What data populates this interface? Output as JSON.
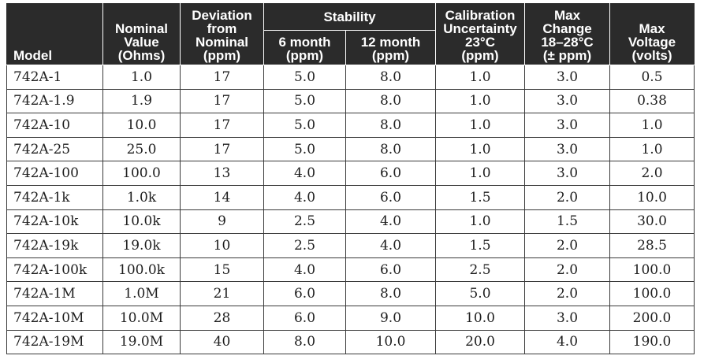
{
  "table": {
    "headers": {
      "model": "Model",
      "nominal": [
        "Nominal",
        "Value",
        "(Ohms)"
      ],
      "deviation": [
        "Deviation",
        "from",
        "Nominal",
        "(ppm)"
      ],
      "stability": "Stability",
      "six_month": [
        "6 month",
        "(ppm)"
      ],
      "twelve_month": [
        "12 month",
        "(ppm)"
      ],
      "calibration": [
        "Calibration",
        "Uncertainty",
        "23°C",
        "(ppm)"
      ],
      "max_change": [
        "Max",
        "Change",
        "18–28°C",
        "(± ppm)"
      ],
      "max_voltage": [
        "Max",
        "Voltage",
        "(volts)"
      ]
    },
    "rows": [
      {
        "model": "742A-1",
        "nominal": "1.0",
        "deviation": "17",
        "six_month": "5.0",
        "twelve_month": "8.0",
        "calibration": "1.0",
        "max_change": "3.0",
        "max_voltage": "0.5"
      },
      {
        "model": "742A-1.9",
        "nominal": "1.9",
        "deviation": "17",
        "six_month": "5.0",
        "twelve_month": "8.0",
        "calibration": "1.0",
        "max_change": "3.0",
        "max_voltage": "0.38"
      },
      {
        "model": "742A-10",
        "nominal": "10.0",
        "deviation": "17",
        "six_month": "5.0",
        "twelve_month": "8.0",
        "calibration": "1.0",
        "max_change": "3.0",
        "max_voltage": "1.0"
      },
      {
        "model": "742A-25",
        "nominal": "25.0",
        "deviation": "17",
        "six_month": "5.0",
        "twelve_month": "8.0",
        "calibration": "1.0",
        "max_change": "3.0",
        "max_voltage": "1.0"
      },
      {
        "model": "742A-100",
        "nominal": "100.0",
        "deviation": "13",
        "six_month": "4.0",
        "twelve_month": "6.0",
        "calibration": "1.0",
        "max_change": "3.0",
        "max_voltage": "2.0"
      },
      {
        "model": "742A-1k",
        "nominal": "1.0k",
        "deviation": "14",
        "six_month": "4.0",
        "twelve_month": "6.0",
        "calibration": "1.5",
        "max_change": "2.0",
        "max_voltage": "10.0"
      },
      {
        "model": "742A-10k",
        "nominal": "10.0k",
        "deviation": "9",
        "six_month": "2.5",
        "twelve_month": "4.0",
        "calibration": "1.0",
        "max_change": "1.5",
        "max_voltage": "30.0"
      },
      {
        "model": "742A-19k",
        "nominal": "19.0k",
        "deviation": "10",
        "six_month": "2.5",
        "twelve_month": "4.0",
        "calibration": "1.5",
        "max_change": "2.0",
        "max_voltage": "28.5"
      },
      {
        "model": "742A-100k",
        "nominal": "100.0k",
        "deviation": "15",
        "six_month": "4.0",
        "twelve_month": "6.0",
        "calibration": "2.5",
        "max_change": "2.0",
        "max_voltage": "100.0"
      },
      {
        "model": "742A-1M",
        "nominal": "1.0M",
        "deviation": "21",
        "six_month": "6.0",
        "twelve_month": "8.0",
        "calibration": "5.0",
        "max_change": "2.0",
        "max_voltage": "100.0"
      },
      {
        "model": "742A-10M",
        "nominal": "10.0M",
        "deviation": "28",
        "six_month": "6.0",
        "twelve_month": "9.0",
        "calibration": "10.0",
        "max_change": "3.0",
        "max_voltage": "200.0"
      },
      {
        "model": "742A-19M",
        "nominal": "19.0M",
        "deviation": "40",
        "six_month": "8.0",
        "twelve_month": "10.0",
        "calibration": "20.0",
        "max_change": "4.0",
        "max_voltage": "190.0"
      }
    ]
  }
}
